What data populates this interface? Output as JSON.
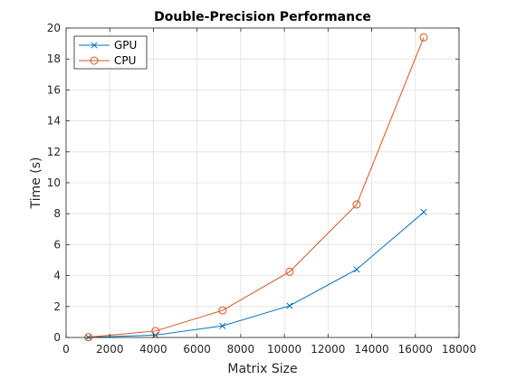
{
  "chart_data": {
    "type": "line",
    "title": "Double-Precision Performance",
    "xlabel": "Matrix Size",
    "ylabel": "Time (s)",
    "xlim": [
      0,
      18000
    ],
    "ylim": [
      0,
      20
    ],
    "xticks": [
      0,
      2000,
      4000,
      6000,
      8000,
      10000,
      12000,
      14000,
      16000,
      18000
    ],
    "yticks": [
      0,
      2,
      4,
      6,
      8,
      10,
      12,
      14,
      16,
      18,
      20
    ],
    "grid": true,
    "legend_position": "top-left",
    "series": [
      {
        "name": "GPU",
        "marker": "x",
        "color": "#0072BD",
        "x": [
          1024,
          4096,
          7168,
          10240,
          13312,
          16384
        ],
        "y": [
          0.01,
          0.15,
          0.75,
          2.05,
          4.4,
          8.1
        ]
      },
      {
        "name": "CPU",
        "marker": "o",
        "color": "#D95319",
        "x": [
          1024,
          4096,
          7168,
          10240,
          13312,
          16384
        ],
        "y": [
          0.02,
          0.42,
          1.75,
          4.25,
          8.6,
          19.4
        ]
      }
    ]
  }
}
